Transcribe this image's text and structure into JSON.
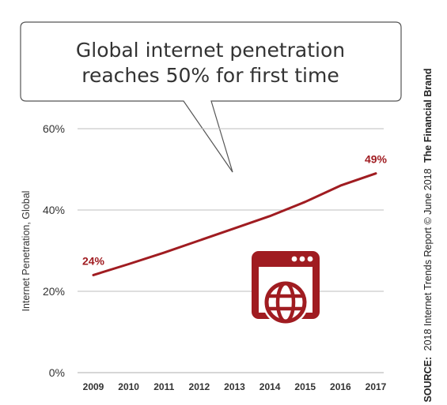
{
  "callout": {
    "line1": "Global internet penetration",
    "line2": "reaches 50% for first time"
  },
  "side_note": {
    "source_label": "SOURCE:",
    "source_text": "2018 Internet Trends Report © June 2018",
    "brand": "The Financial Brand"
  },
  "colors": {
    "accent": "#a01c21",
    "grid": "#bdbdbd",
    "text": "#333333"
  },
  "icon": "browser-globe-icon",
  "chart_data": {
    "type": "line",
    "categories": [
      "2009",
      "2010",
      "2011",
      "2012",
      "2013",
      "2014",
      "2015",
      "2016",
      "2017"
    ],
    "series": [
      {
        "values": [
          24,
          26.7,
          29.5,
          32.5,
          35.5,
          38.5,
          42,
          46,
          49
        ]
      }
    ],
    "ylabel": "Internet Penetration, Global",
    "yticks": [
      "0%",
      "20%",
      "40%",
      "60%"
    ],
    "ytick_values": [
      0,
      20,
      40,
      60
    ],
    "ylim": [
      0,
      60
    ],
    "grid": true,
    "data_labels": {
      "first": "24%",
      "last": "49%"
    }
  }
}
